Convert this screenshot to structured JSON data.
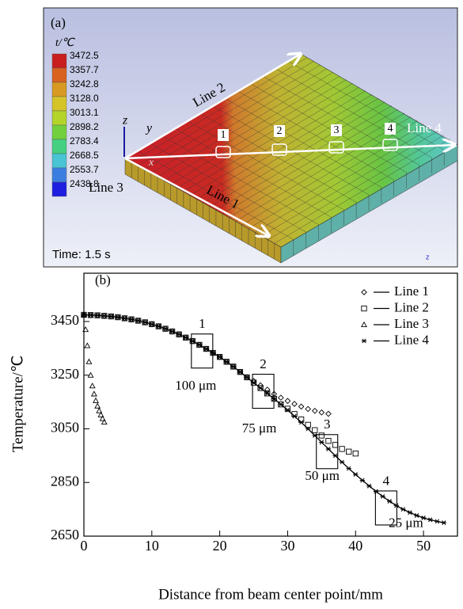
{
  "panel_a": {
    "label": "(a)",
    "colorbar": {
      "title": "t/℃",
      "ticks": [
        3472.5,
        3357.7,
        3242.8,
        {
          "value": 3128,
          "label": "3128.0"
        },
        3013.1,
        2898.2,
        2783.4,
        2668.5,
        2553.7,
        2438.8
      ],
      "colors": [
        "#c81e1e",
        "#d8621e",
        "#d89a22",
        "#d4c428",
        "#b4d42a",
        "#72d03c",
        "#44d080",
        "#48c4d4",
        "#3c7ee0",
        "#1e1ee0"
      ]
    },
    "axes": [
      "z",
      "y",
      "x"
    ],
    "lines": [
      "Line 1",
      "Line 2",
      "Line 3",
      "Line 4"
    ],
    "points": [
      "1",
      "2",
      "3",
      "4"
    ],
    "time": "Time: 1.5 s",
    "corner_axis": "z"
  },
  "chart_data": {
    "type": "scatter",
    "panel_label": "(b)",
    "x_label": "Distance from beam center point/mm",
    "y_label": "Temperature/℃",
    "xlim": [
      0,
      55
    ],
    "ylim": [
      2650,
      3630
    ],
    "xticks": [
      0,
      10,
      20,
      30,
      40,
      50
    ],
    "yticks": [
      2650,
      2850,
      3050,
      3250,
      3450
    ],
    "legend": "upper right",
    "series": [
      {
        "name": "Line 1",
        "color": "#000000",
        "marker": "diamond",
        "line": false,
        "x": [
          0,
          1,
          2,
          3,
          4,
          5,
          6,
          7,
          8,
          9,
          10,
          11,
          12,
          13,
          14,
          15,
          16,
          17,
          18,
          19,
          20,
          21,
          22,
          23,
          24,
          25,
          26,
          27,
          28,
          29,
          30,
          31,
          32,
          33,
          34,
          35,
          36
        ],
        "values": [
          3475,
          3474,
          3473,
          3471,
          3469,
          3466,
          3462,
          3458,
          3453,
          3447,
          3440,
          3432,
          3423,
          3413,
          3402,
          3390,
          3377,
          3363,
          3348,
          3333,
          3318,
          3300,
          3282,
          3262,
          3242,
          3228,
          3212,
          3196,
          3180,
          3166,
          3154,
          3143,
          3133,
          3124,
          3117,
          3111,
          3106
        ]
      },
      {
        "name": "Line 2",
        "color": "#000000",
        "marker": "square",
        "line": false,
        "x": [
          0,
          1,
          2,
          3,
          4,
          5,
          6,
          7,
          8,
          9,
          10,
          11,
          12,
          13,
          14,
          15,
          16,
          17,
          18,
          19,
          20,
          21,
          22,
          23,
          24,
          25,
          26,
          27,
          28,
          29,
          30,
          31,
          32,
          33,
          34,
          35,
          36,
          37,
          38,
          39,
          40
        ],
        "values": [
          3475,
          3474,
          3473,
          3471,
          3469,
          3466,
          3462,
          3458,
          3453,
          3447,
          3440,
          3432,
          3423,
          3413,
          3402,
          3390,
          3377,
          3363,
          3348,
          3333,
          3318,
          3300,
          3282,
          3262,
          3242,
          3222,
          3202,
          3182,
          3162,
          3141,
          3125,
          3105,
          3085,
          3065,
          3045,
          3025,
          3005,
          2990,
          2975,
          2965,
          2958
        ]
      },
      {
        "name": "Line 3",
        "color": "#000000",
        "marker": "triangle",
        "line": false,
        "x": [
          0,
          0.25,
          0.5,
          0.75,
          1,
          1.25,
          1.5,
          1.75,
          2,
          2.25,
          2.5,
          2.75,
          3
        ],
        "values": [
          3475,
          3420,
          3360,
          3300,
          3250,
          3210,
          3180,
          3155,
          3135,
          3117,
          3102,
          3088,
          3075
        ]
      },
      {
        "name": "Line 4",
        "color": "#000000",
        "marker": "asterisk",
        "line": true,
        "x": [
          0,
          1,
          2,
          3,
          4,
          5,
          6,
          7,
          8,
          9,
          10,
          11,
          12,
          13,
          14,
          15,
          16,
          17,
          18,
          19,
          20,
          21,
          22,
          23,
          24,
          25,
          26,
          27,
          28,
          29,
          30,
          31,
          32,
          33,
          34,
          35,
          36,
          37,
          38,
          39,
          40,
          41,
          42,
          43,
          44,
          45,
          46,
          47,
          48,
          49,
          50,
          51,
          52,
          53
        ],
        "values": [
          3475,
          3474,
          3473,
          3471,
          3469,
          3466,
          3462,
          3458,
          3453,
          3447,
          3440,
          3432,
          3423,
          3413,
          3402,
          3390,
          3377,
          3363,
          3348,
          3333,
          3318,
          3300,
          3282,
          3262,
          3242,
          3222,
          3202,
          3182,
          3162,
          3141,
          3120,
          3097,
          3074,
          3050,
          3025,
          3000,
          2975,
          2950,
          2926,
          2902,
          2880,
          2858,
          2837,
          2817,
          2798,
          2780,
          2764,
          2750,
          2738,
          2727,
          2718,
          2711,
          2705,
          2700
        ]
      }
    ],
    "annotations": [
      {
        "label": "1",
        "text": "100 μm",
        "x": 17.4,
        "y": 3340
      },
      {
        "label": "2",
        "text": "75 μm",
        "x": 26.4,
        "y": 3190
      },
      {
        "label": "3",
        "text": "50 μm",
        "x": 35.8,
        "y": 2965
      },
      {
        "label": "4",
        "text": "25 μm",
        "x": 44.5,
        "y": 2755
      }
    ]
  }
}
